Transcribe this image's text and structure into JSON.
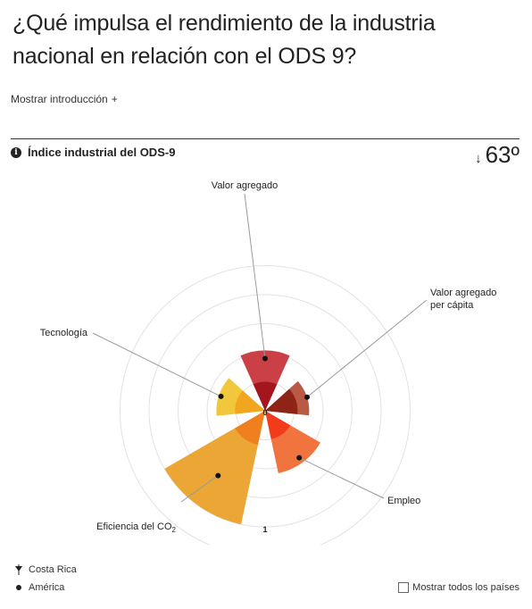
{
  "header": {
    "title": "¿Qué impulsa el rendimiento de la industria nacional en relación con el ODS 9?",
    "intro_label": "Mostrar introducción",
    "intro_icon": "+"
  },
  "index": {
    "label": "Índice industrial del ODS-9",
    "rank_arrow": "↓",
    "rank": "63º"
  },
  "chart_data": {
    "type": "polar-bar",
    "scale_min_label": "0",
    "scale_max_label": "1",
    "rmax": 1,
    "dimensions": [
      {
        "label": "Valor agregado",
        "inner": 0.25,
        "outer": 0.52,
        "america": 0.45,
        "color_outer": "#c8363d",
        "color_inner": "#a3161c"
      },
      {
        "label": "Valor agregado per cápita",
        "inner": 0.28,
        "outer": 0.38,
        "america": 0.38,
        "color_outer": "#b5513a",
        "color_inner": "#8e2418"
      },
      {
        "label": "Empleo",
        "inner": 0.25,
        "outer": 0.55,
        "america": 0.5,
        "color_outer": "#f06d35",
        "color_inner": "#f23b1b"
      },
      {
        "label": "Eficiencia del CO2",
        "inner": 0.3,
        "outer": 1.0,
        "america": 0.69,
        "color_outer": "#eba12a",
        "color_inner": "#f07f1e"
      },
      {
        "label": "Tecnología",
        "inner": 0.26,
        "outer": 0.42,
        "america": 0.4,
        "color_outer": "#f0c531",
        "color_inner": "#f2a51f"
      }
    ]
  },
  "legend": {
    "country": "Costa Rica",
    "region": "América"
  },
  "controls": {
    "show_all_label": "Mostrar todos los países"
  }
}
